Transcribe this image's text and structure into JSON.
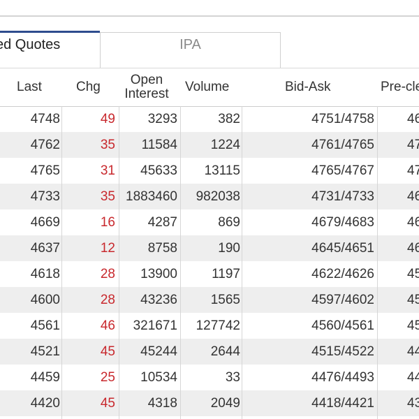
{
  "tabs": {
    "active_label": "ed Quotes",
    "inactive_label": "IPA"
  },
  "header": {
    "last": "Last",
    "chg": "Chg",
    "open_interest": "Open\nInterest",
    "volume": "Volume",
    "bid_ask": "Bid-Ask",
    "pre_close": "Pre-cle"
  },
  "rows": [
    {
      "last": "4748",
      "chg": "49",
      "oi": "3293",
      "vol": "382",
      "bidask": "4751/4758",
      "pre": "46"
    },
    {
      "last": "4762",
      "chg": "35",
      "oi": "11584",
      "vol": "1224",
      "bidask": "4761/4765",
      "pre": "47"
    },
    {
      "last": "4765",
      "chg": "31",
      "oi": "45633",
      "vol": "13115",
      "bidask": "4765/4767",
      "pre": "47"
    },
    {
      "last": "4733",
      "chg": "35",
      "oi": "1883460",
      "vol": "982038",
      "bidask": "4731/4733",
      "pre": "46"
    },
    {
      "last": "4669",
      "chg": "16",
      "oi": "4287",
      "vol": "869",
      "bidask": "4679/4683",
      "pre": "46"
    },
    {
      "last": "4637",
      "chg": "12",
      "oi": "8758",
      "vol": "190",
      "bidask": "4645/4651",
      "pre": "46"
    },
    {
      "last": "4618",
      "chg": "28",
      "oi": "13900",
      "vol": "1197",
      "bidask": "4622/4626",
      "pre": "45"
    },
    {
      "last": "4600",
      "chg": "28",
      "oi": "43236",
      "vol": "1565",
      "bidask": "4597/4602",
      "pre": "45"
    },
    {
      "last": "4561",
      "chg": "46",
      "oi": "321671",
      "vol": "127742",
      "bidask": "4560/4561",
      "pre": "45"
    },
    {
      "last": "4521",
      "chg": "45",
      "oi": "45244",
      "vol": "2644",
      "bidask": "4515/4522",
      "pre": "44"
    },
    {
      "last": "4459",
      "chg": "25",
      "oi": "10534",
      "vol": "33",
      "bidask": "4476/4493",
      "pre": "44"
    },
    {
      "last": "4420",
      "chg": "45",
      "oi": "4318",
      "vol": "2049",
      "bidask": "4418/4421",
      "pre": "43"
    }
  ],
  "colors": {
    "change_positive": "#c8282d",
    "active_tab_accent": "#2e4c8e",
    "row_shade": "#eeeeee"
  }
}
